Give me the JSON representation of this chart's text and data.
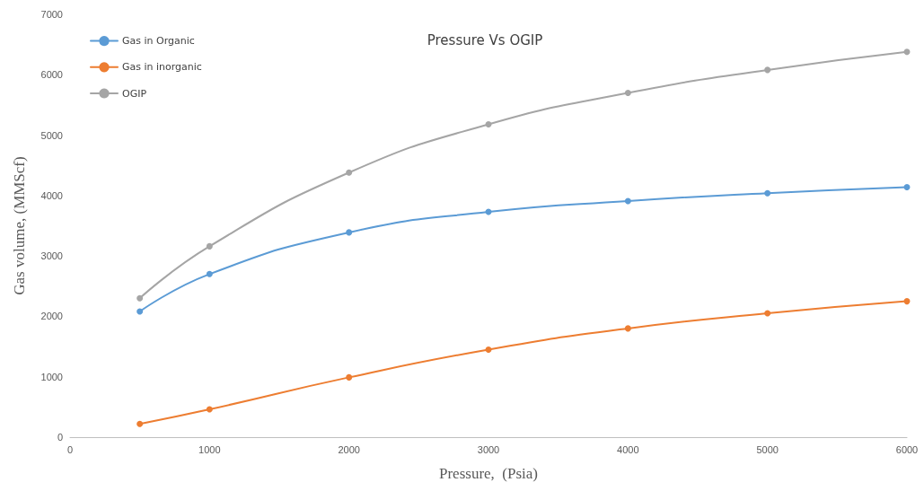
{
  "chart_data": {
    "type": "line",
    "title": "Pressure Vs OGIP",
    "xlabel": "Pressure,  (Psia)",
    "ylabel": "Gas volume, (MMScf)",
    "x": [
      500,
      1000,
      2000,
      3000,
      4000,
      5000,
      6000
    ],
    "series": [
      {
        "name": "Gas in Organic",
        "color": "#5b9bd5",
        "values": [
          2080,
          2700,
          3390,
          3730,
          3910,
          4040,
          4140
        ]
      },
      {
        "name": "Gas in inorganic",
        "color": "#ed7d31",
        "values": [
          220,
          460,
          990,
          1450,
          1800,
          2050,
          2250
        ]
      },
      {
        "name": "OGIP",
        "color": "#a5a5a5",
        "values": [
          2300,
          3160,
          4380,
          5180,
          5700,
          6080,
          6380
        ]
      }
    ],
    "xlim": [
      0,
      6000
    ],
    "xticks": [
      0,
      1000,
      2000,
      3000,
      4000,
      5000,
      6000
    ],
    "ylim": [
      0,
      7000
    ],
    "yticks": [
      0,
      1000,
      2000,
      3000,
      4000,
      5000,
      6000,
      7000
    ],
    "grid": false,
    "legend": "top left",
    "marker": "circle",
    "line_style": "solid"
  }
}
